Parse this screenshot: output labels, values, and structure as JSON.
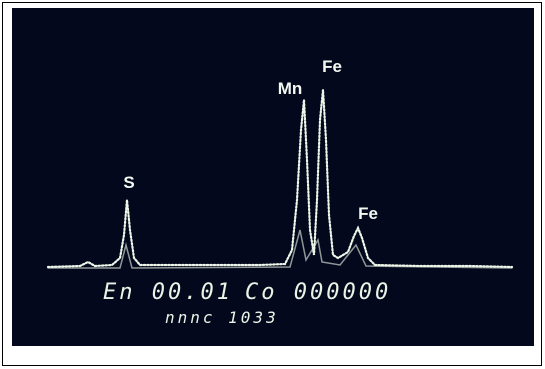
{
  "peaks": [
    {
      "label": "S"
    },
    {
      "label": "Mn"
    },
    {
      "label": "Fe"
    },
    {
      "label": "Fe"
    }
  ],
  "readout": {
    "line1_left": "En 00.01",
    "line1_right": "Co 000000",
    "line2": "nnnc 1033"
  }
}
